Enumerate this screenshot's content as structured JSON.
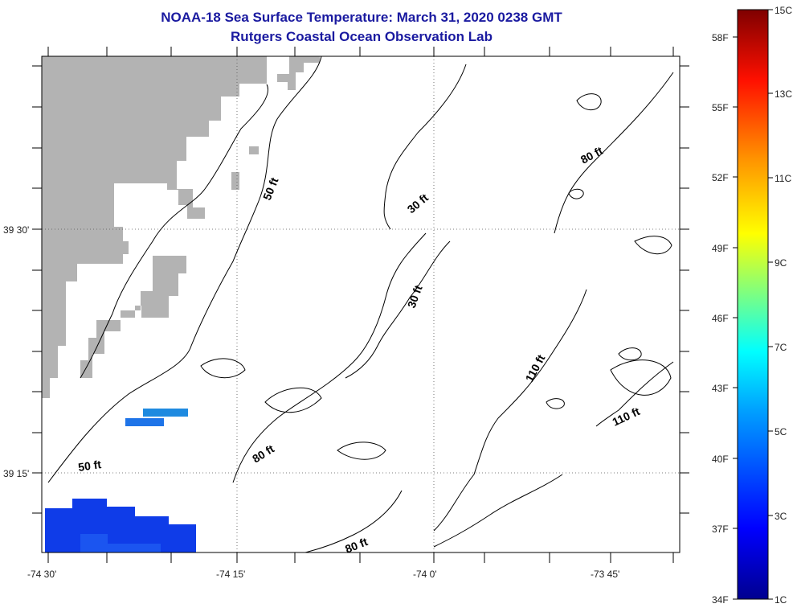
{
  "title": {
    "line1": "NOAA-18 Sea Surface Temperature:  March 31, 2020 0238 GMT",
    "line2": "Rutgers Coastal Ocean Observation Lab"
  },
  "map": {
    "lat_labels": [
      "39 30'",
      "39 15'"
    ],
    "lon_labels": [
      "-74 30'",
      "-74 15'",
      "-74 0'",
      "-73 45'"
    ],
    "contour_labels": [
      "50 ft",
      "30 ft",
      "80 ft",
      "30 ft",
      "110 ft",
      "110 ft",
      "50 ft",
      "80 ft",
      "80 ft"
    ],
    "colors": {
      "land": "#b3b3b3",
      "contour": "#000000",
      "frame": "#000000"
    }
  },
  "colorbar": {
    "fahrenheit_labels": [
      "58F",
      "55F",
      "52F",
      "49F",
      "46F",
      "43F",
      "40F",
      "37F",
      "34F"
    ],
    "celsius_labels": [
      "15C",
      "13C",
      "11C",
      "9C",
      "7C",
      "5C",
      "3C",
      "1C"
    ],
    "colors": [
      "#00008f",
      "#0000ff",
      "#007fff",
      "#00ffff",
      "#7fff7f",
      "#ffff00",
      "#ff7f00",
      "#ff0000",
      "#7f0000"
    ]
  },
  "sst_patches": {
    "colors": [
      "#1e6fe0",
      "#1b4ff0",
      "#0f3ce8"
    ]
  }
}
